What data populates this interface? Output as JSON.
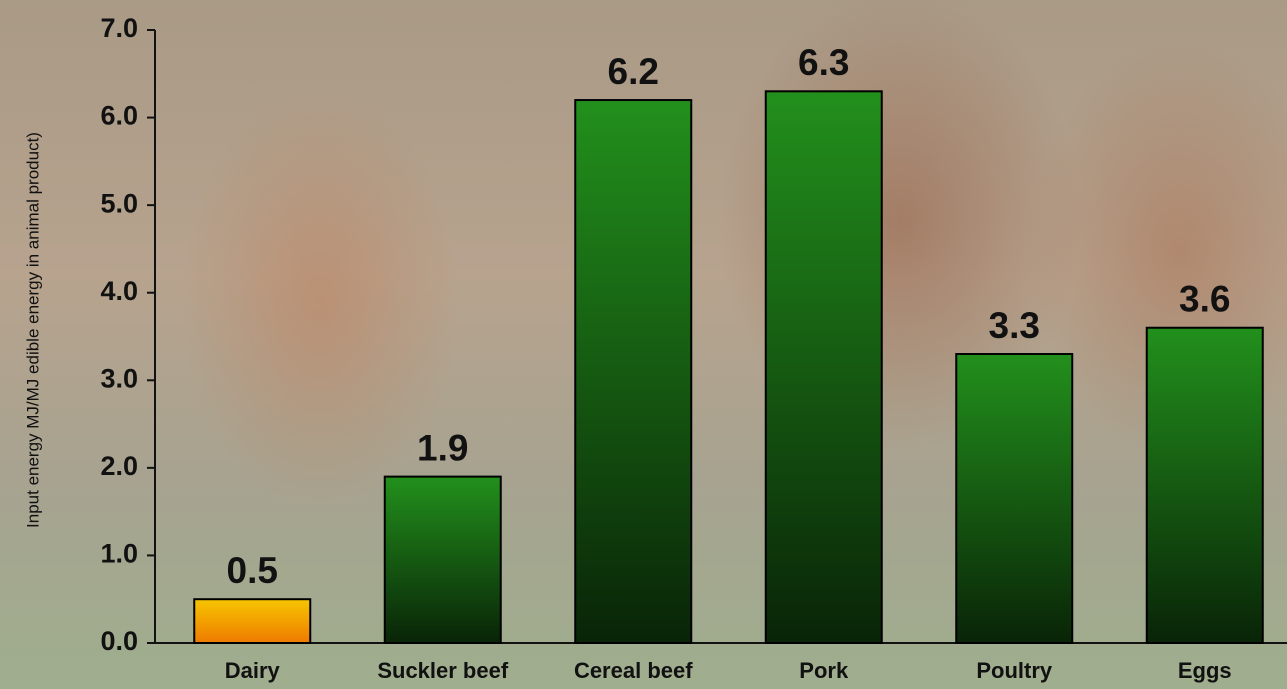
{
  "chart_data": {
    "type": "bar",
    "y_label": "Input energy MJ/MJ edible energy in animal product)",
    "categories": [
      "Dairy",
      "Suckler beef",
      "Cereal beef",
      "Pork",
      "Poultry",
      "Eggs"
    ],
    "values": [
      0.5,
      1.9,
      6.2,
      6.3,
      3.3,
      3.6
    ],
    "colors": [
      "#f7c600",
      "#22901c",
      "#22901c",
      "#22901c",
      "#22901c",
      "#22901c"
    ],
    "ylim": [
      0,
      7
    ],
    "yticks": [
      {
        "value": 0,
        "label": "0.0"
      },
      {
        "value": 1,
        "label": "1.0"
      },
      {
        "value": 2,
        "label": "2.0"
      },
      {
        "value": 3,
        "label": "3.0"
      },
      {
        "value": 4,
        "label": "4.0"
      },
      {
        "value": 5,
        "label": "5.0"
      },
      {
        "value": 6,
        "label": "6.0"
      },
      {
        "value": 7,
        "label": "7.0"
      }
    ],
    "grid": false
  }
}
